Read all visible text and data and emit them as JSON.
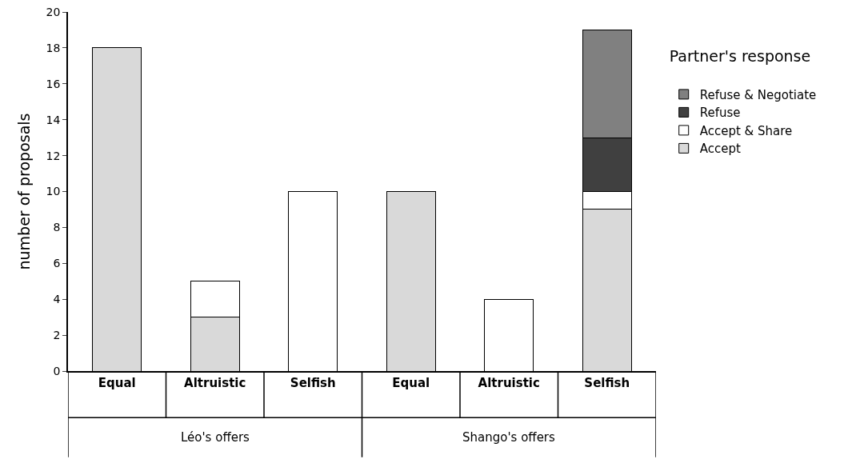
{
  "chart_data": {
    "type": "bar",
    "stacked": true,
    "ylabel": "number of proposals",
    "legend_title": "Partner's response",
    "legend": "right",
    "grid": false,
    "categories": [
      "Equal",
      "Altruistic",
      "Selfish",
      "Equal",
      "Altruistic",
      "Selfish"
    ],
    "series": [
      {
        "name": "Accept",
        "color": "#d9d9d9",
        "values": [
          18,
          3,
          null,
          10,
          null,
          9
        ]
      },
      {
        "name": "Accept & Share",
        "color": "#ffffff",
        "values": [
          null,
          2,
          10,
          null,
          4,
          1
        ]
      },
      {
        "name": "Refuse",
        "color": "#404040",
        "values": [
          null,
          null,
          null,
          null,
          null,
          3
        ]
      },
      {
        "name": "Refuse & Negotiate",
        "color": "#808080",
        "values": [
          null,
          null,
          null,
          null,
          null,
          6
        ]
      }
    ],
    "ylim": [
      0,
      20
    ],
    "yticks": [
      0,
      2,
      4,
      6,
      8,
      10,
      12,
      14,
      16,
      18,
      20
    ],
    "annotations": [
      "Léo's offers",
      "Shango's offers"
    ]
  }
}
